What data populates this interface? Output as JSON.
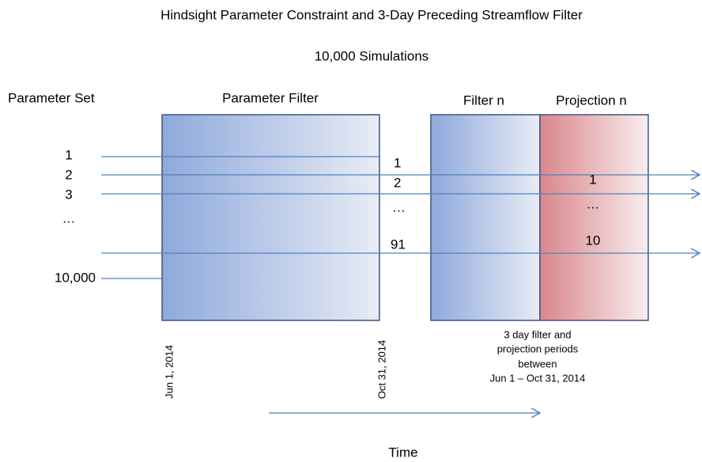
{
  "header": {
    "title": "Hindsight Parameter Constraint and 3-Day Preceding Streamflow Filter",
    "subtitle": "10,000 Simulations"
  },
  "columns": {
    "parameter_set": "Parameter Set",
    "parameter_filter": "Parameter Filter",
    "filter_n": "Filter n",
    "projection_n": "Projection n"
  },
  "parameter_sets": [
    "1",
    "2",
    "3",
    "…",
    "10,000"
  ],
  "filter_outputs": [
    "1",
    "2",
    "…",
    "91"
  ],
  "projection_outputs": [
    "1",
    "…",
    "10"
  ],
  "dates": {
    "start": "Jun 1, 2014",
    "end": "Oct 31, 2014"
  },
  "note": [
    "3 day filter and",
    "projection periods",
    "between",
    "Jun 1 – Oct 31, 2014"
  ],
  "axis": {
    "label": "Time"
  }
}
